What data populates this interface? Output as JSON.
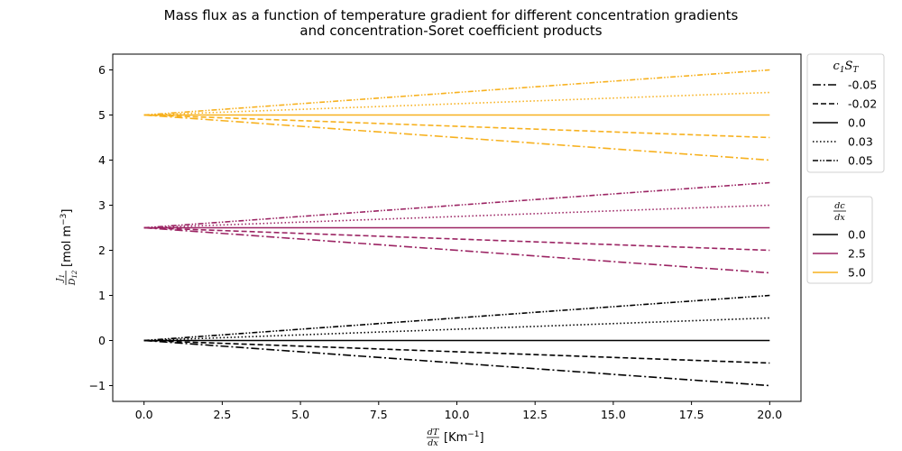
{
  "chart_data": {
    "type": "line",
    "title_line1": "Mass flux as a function of temperature gradient for different concentration gradients",
    "title_line2": "and concentration-Soret coefficient products",
    "xlabel_unit": "[Km",
    "xlabel_exp": "−1",
    "xlabel_close": "]",
    "ylabel_unit": "[mol m",
    "ylabel_exp": "−3",
    "ylabel_close": "]",
    "xlim": [
      -1.0,
      21.0
    ],
    "ylim": [
      -1.35,
      6.35
    ],
    "xticks": [
      0.0,
      2.5,
      5.0,
      7.5,
      10.0,
      12.5,
      15.0,
      17.5,
      20.0
    ],
    "xtick_labels": [
      "0.0",
      "2.5",
      "5.0",
      "7.5",
      "10.0",
      "12.5",
      "15.0",
      "17.5",
      "20.0"
    ],
    "yticks": [
      -1,
      0,
      1,
      2,
      3,
      4,
      5,
      6
    ],
    "ytick_labels": [
      "−1",
      "0",
      "1",
      "2",
      "3",
      "4",
      "5",
      "6"
    ],
    "grid": false,
    "series": [
      {
        "dcdx": "0.0",
        "cST": "-0.05",
        "color": "#000000",
        "x": [
          0,
          20
        ],
        "y": [
          0.0,
          -1.0
        ]
      },
      {
        "dcdx": "0.0",
        "cST": "-0.02",
        "color": "#000000",
        "x": [
          0,
          20
        ],
        "y": [
          0.0,
          -0.5
        ]
      },
      {
        "dcdx": "0.0",
        "cST": "0.0",
        "color": "#000000",
        "x": [
          0,
          20
        ],
        "y": [
          0.0,
          0.0
        ]
      },
      {
        "dcdx": "0.0",
        "cST": "0.03",
        "color": "#000000",
        "x": [
          0,
          20
        ],
        "y": [
          0.0,
          0.5
        ]
      },
      {
        "dcdx": "0.0",
        "cST": "0.05",
        "color": "#000000",
        "x": [
          0,
          20
        ],
        "y": [
          0.0,
          1.0
        ]
      },
      {
        "dcdx": "2.5",
        "cST": "-0.05",
        "color": "#9b2463",
        "x": [
          0,
          20
        ],
        "y": [
          2.5,
          1.5
        ]
      },
      {
        "dcdx": "2.5",
        "cST": "-0.02",
        "color": "#9b2463",
        "x": [
          0,
          20
        ],
        "y": [
          2.5,
          2.0
        ]
      },
      {
        "dcdx": "2.5",
        "cST": "0.0",
        "color": "#9b2463",
        "x": [
          0,
          20
        ],
        "y": [
          2.5,
          2.5
        ]
      },
      {
        "dcdx": "2.5",
        "cST": "0.03",
        "color": "#9b2463",
        "x": [
          0,
          20
        ],
        "y": [
          2.5,
          3.0
        ]
      },
      {
        "dcdx": "2.5",
        "cST": "0.05",
        "color": "#9b2463",
        "x": [
          0,
          20
        ],
        "y": [
          2.5,
          3.5
        ]
      },
      {
        "dcdx": "5.0",
        "cST": "-0.05",
        "color": "#f7b11f",
        "x": [
          0,
          20
        ],
        "y": [
          5.0,
          4.0
        ]
      },
      {
        "dcdx": "5.0",
        "cST": "-0.02",
        "color": "#f7b11f",
        "x": [
          0,
          20
        ],
        "y": [
          5.0,
          4.5
        ]
      },
      {
        "dcdx": "5.0",
        "cST": "0.0",
        "color": "#f7b11f",
        "x": [
          0,
          20
        ],
        "y": [
          5.0,
          5.0
        ]
      },
      {
        "dcdx": "5.0",
        "cST": "0.03",
        "color": "#f7b11f",
        "x": [
          0,
          20
        ],
        "y": [
          5.0,
          5.5
        ]
      },
      {
        "dcdx": "5.0",
        "cST": "0.05",
        "color": "#f7b11f",
        "x": [
          0,
          20
        ],
        "y": [
          5.0,
          6.0
        ]
      }
    ],
    "legend_style": {
      "placement": "right-outside-top",
      "entries": [
        {
          "label": "-0.05",
          "dash": "dashdot"
        },
        {
          "label": "-0.02",
          "dash": "dashed"
        },
        {
          "label": "0.0",
          "dash": "solid"
        },
        {
          "label": "0.03",
          "dash": "dotted"
        },
        {
          "label": "0.05",
          "dash": "dashdotdot"
        }
      ]
    },
    "legend_color": {
      "placement": "right-outside-middle",
      "entries": [
        {
          "label": "0.0",
          "color": "#000000"
        },
        {
          "label": "2.5",
          "color": "#9b2463"
        },
        {
          "label": "5.0",
          "color": "#f7b11f"
        }
      ]
    }
  }
}
